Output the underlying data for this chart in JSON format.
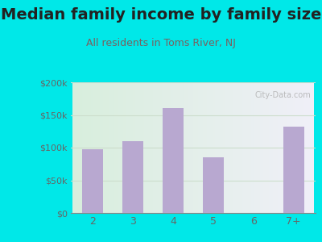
{
  "title": "Median family income by family size",
  "subtitle": "All residents in Toms River, NJ",
  "categories": [
    "2",
    "3",
    "4",
    "5",
    "6",
    "7+"
  ],
  "values": [
    97000,
    110000,
    160000,
    85000,
    0,
    132000
  ],
  "bar_color": "#b8a8d0",
  "outer_bg": "#00e8e8",
  "plot_bg_left": "#d8eedd",
  "plot_bg_right": "#f0f0f8",
  "title_color": "#222222",
  "subtitle_color": "#7a6060",
  "tick_color": "#666666",
  "ylim": [
    0,
    200000
  ],
  "yticks": [
    0,
    50000,
    100000,
    150000,
    200000
  ],
  "ytick_labels": [
    "$0",
    "$50k",
    "$100k",
    "$150k",
    "$200k"
  ],
  "title_fontsize": 14,
  "subtitle_fontsize": 9,
  "watermark": "City-Data.com",
  "grid_color": "#ccddcc"
}
